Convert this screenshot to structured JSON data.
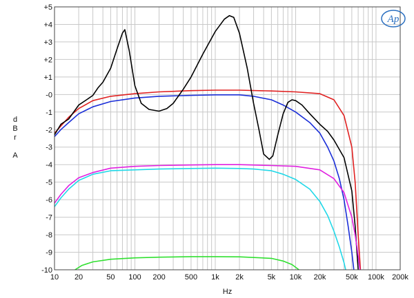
{
  "logo": {
    "text": "Ap",
    "color": "#2a6fc0"
  },
  "chart_data": {
    "type": "line",
    "title": "",
    "xlabel": "Hz",
    "ylabel_lines": [
      "d",
      "B",
      "r",
      "",
      "A"
    ],
    "xscale": "log",
    "xlim": [
      10,
      200000
    ],
    "ylim": [
      -10,
      5
    ],
    "grid": true,
    "legend": "none",
    "x_ticks": [
      {
        "v": 10,
        "label": "10"
      },
      {
        "v": 20,
        "label": "20"
      },
      {
        "v": 50,
        "label": "50"
      },
      {
        "v": 100,
        "label": "100"
      },
      {
        "v": 200,
        "label": "200"
      },
      {
        "v": 500,
        "label": "500"
      },
      {
        "v": 1000,
        "label": "1k"
      },
      {
        "v": 2000,
        "label": "2k"
      },
      {
        "v": 5000,
        "label": "5k"
      },
      {
        "v": 10000,
        "label": "10k"
      },
      {
        "v": 20000,
        "label": "20k"
      },
      {
        "v": 50000,
        "label": "50k"
      },
      {
        "v": 100000,
        "label": "100k"
      },
      {
        "v": 200000,
        "label": "200k"
      }
    ],
    "y_ticks": [
      {
        "v": 5,
        "label": "+5"
      },
      {
        "v": 4,
        "label": "+4"
      },
      {
        "v": 3,
        "label": "+3"
      },
      {
        "v": 2,
        "label": "+2"
      },
      {
        "v": 1,
        "label": "+1"
      },
      {
        "v": 0,
        "label": "-0"
      },
      {
        "v": -1,
        "label": "-1"
      },
      {
        "v": -2,
        "label": "-2"
      },
      {
        "v": -3,
        "label": "-3"
      },
      {
        "v": -4,
        "label": "-4"
      },
      {
        "v": -5,
        "label": "-5"
      },
      {
        "v": -6,
        "label": "-6"
      },
      {
        "v": -7,
        "label": "-7"
      },
      {
        "v": -8,
        "label": "-8"
      },
      {
        "v": -9,
        "label": "-9"
      },
      {
        "v": -10,
        "label": "-10"
      }
    ],
    "series": [
      {
        "color": "#e02020",
        "points": [
          [
            10,
            -2.2
          ],
          [
            12,
            -1.8
          ],
          [
            15,
            -1.3
          ],
          [
            20,
            -0.8
          ],
          [
            30,
            -0.35
          ],
          [
            50,
            -0.1
          ],
          [
            100,
            0.05
          ],
          [
            200,
            0.15
          ],
          [
            500,
            0.22
          ],
          [
            1000,
            0.25
          ],
          [
            2000,
            0.25
          ],
          [
            5000,
            0.2
          ],
          [
            10000,
            0.15
          ],
          [
            20000,
            0.05
          ],
          [
            30000,
            -0.3
          ],
          [
            40000,
            -1.2
          ],
          [
            50000,
            -3
          ],
          [
            55000,
            -5
          ],
          [
            60000,
            -8
          ],
          [
            64000,
            -10
          ]
        ]
      },
      {
        "color": "#1a2ed8",
        "points": [
          [
            10,
            -2.4
          ],
          [
            12,
            -2.0
          ],
          [
            15,
            -1.6
          ],
          [
            20,
            -1.1
          ],
          [
            30,
            -0.7
          ],
          [
            50,
            -0.4
          ],
          [
            100,
            -0.2
          ],
          [
            200,
            -0.1
          ],
          [
            500,
            -0.05
          ],
          [
            1000,
            -0.02
          ],
          [
            2000,
            -0.02
          ],
          [
            3000,
            -0.1
          ],
          [
            5000,
            -0.3
          ],
          [
            7000,
            -0.6
          ],
          [
            10000,
            -1.0
          ],
          [
            15000,
            -1.6
          ],
          [
            20000,
            -2.2
          ],
          [
            25000,
            -3.0
          ],
          [
            30000,
            -3.8
          ],
          [
            35000,
            -4.8
          ],
          [
            40000,
            -6.0
          ],
          [
            45000,
            -7.5
          ],
          [
            50000,
            -9
          ],
          [
            53000,
            -10
          ]
        ]
      },
      {
        "color": "#000000",
        "points": [
          [
            10,
            -2.3
          ],
          [
            12,
            -1.7
          ],
          [
            15,
            -1.4
          ],
          [
            20,
            -0.6
          ],
          [
            25,
            -0.3
          ],
          [
            30,
            -0.05
          ],
          [
            35,
            0.4
          ],
          [
            40,
            0.7
          ],
          [
            50,
            1.5
          ],
          [
            60,
            2.6
          ],
          [
            70,
            3.5
          ],
          [
            75,
            3.7
          ],
          [
            85,
            2.5
          ],
          [
            100,
            0.5
          ],
          [
            120,
            -0.5
          ],
          [
            150,
            -0.85
          ],
          [
            200,
            -0.95
          ],
          [
            250,
            -0.8
          ],
          [
            300,
            -0.5
          ],
          [
            400,
            0.3
          ],
          [
            500,
            1.0
          ],
          [
            700,
            2.3
          ],
          [
            1000,
            3.6
          ],
          [
            1300,
            4.3
          ],
          [
            1500,
            4.5
          ],
          [
            1700,
            4.4
          ],
          [
            2000,
            3.5
          ],
          [
            2500,
            1.5
          ],
          [
            3000,
            -0.5
          ],
          [
            3500,
            -2.0
          ],
          [
            4000,
            -3.4
          ],
          [
            4700,
            -3.7
          ],
          [
            5200,
            -3.5
          ],
          [
            6000,
            -2.3
          ],
          [
            7000,
            -1.1
          ],
          [
            8000,
            -0.45
          ],
          [
            9000,
            -0.3
          ],
          [
            10000,
            -0.35
          ],
          [
            12000,
            -0.6
          ],
          [
            15000,
            -1.1
          ],
          [
            20000,
            -1.7
          ],
          [
            25000,
            -2.1
          ],
          [
            30000,
            -2.6
          ],
          [
            40000,
            -3.6
          ],
          [
            50000,
            -5.5
          ],
          [
            55000,
            -7.5
          ],
          [
            60000,
            -10
          ]
        ]
      },
      {
        "color": "#e020e0",
        "points": [
          [
            10,
            -6.2
          ],
          [
            12,
            -5.7
          ],
          [
            15,
            -5.2
          ],
          [
            20,
            -4.75
          ],
          [
            30,
            -4.45
          ],
          [
            50,
            -4.2
          ],
          [
            100,
            -4.1
          ],
          [
            200,
            -4.05
          ],
          [
            500,
            -4.02
          ],
          [
            1000,
            -4.0
          ],
          [
            2000,
            -4.0
          ],
          [
            5000,
            -4.05
          ],
          [
            10000,
            -4.1
          ],
          [
            20000,
            -4.3
          ],
          [
            30000,
            -4.8
          ],
          [
            40000,
            -5.6
          ],
          [
            50000,
            -7.0
          ],
          [
            55000,
            -8.0
          ],
          [
            60000,
            -9.2
          ],
          [
            63000,
            -10
          ]
        ]
      },
      {
        "color": "#20d8e8",
        "points": [
          [
            10,
            -6.4
          ],
          [
            12,
            -5.9
          ],
          [
            15,
            -5.4
          ],
          [
            20,
            -4.9
          ],
          [
            30,
            -4.55
          ],
          [
            50,
            -4.35
          ],
          [
            100,
            -4.3
          ],
          [
            200,
            -4.25
          ],
          [
            500,
            -4.22
          ],
          [
            1000,
            -4.2
          ],
          [
            2000,
            -4.22
          ],
          [
            3000,
            -4.25
          ],
          [
            5000,
            -4.35
          ],
          [
            7000,
            -4.55
          ],
          [
            10000,
            -4.85
          ],
          [
            15000,
            -5.4
          ],
          [
            20000,
            -6.1
          ],
          [
            25000,
            -6.9
          ],
          [
            30000,
            -7.8
          ],
          [
            35000,
            -8.7
          ],
          [
            40000,
            -9.6
          ],
          [
            42000,
            -10
          ]
        ]
      },
      {
        "color": "#30e030",
        "points": [
          [
            18,
            -10
          ],
          [
            22,
            -9.75
          ],
          [
            30,
            -9.55
          ],
          [
            50,
            -9.4
          ],
          [
            100,
            -9.32
          ],
          [
            200,
            -9.28
          ],
          [
            500,
            -9.25
          ],
          [
            1000,
            -9.25
          ],
          [
            2000,
            -9.26
          ],
          [
            5000,
            -9.35
          ],
          [
            7000,
            -9.5
          ],
          [
            9000,
            -9.7
          ],
          [
            11000,
            -10
          ]
        ]
      }
    ]
  }
}
